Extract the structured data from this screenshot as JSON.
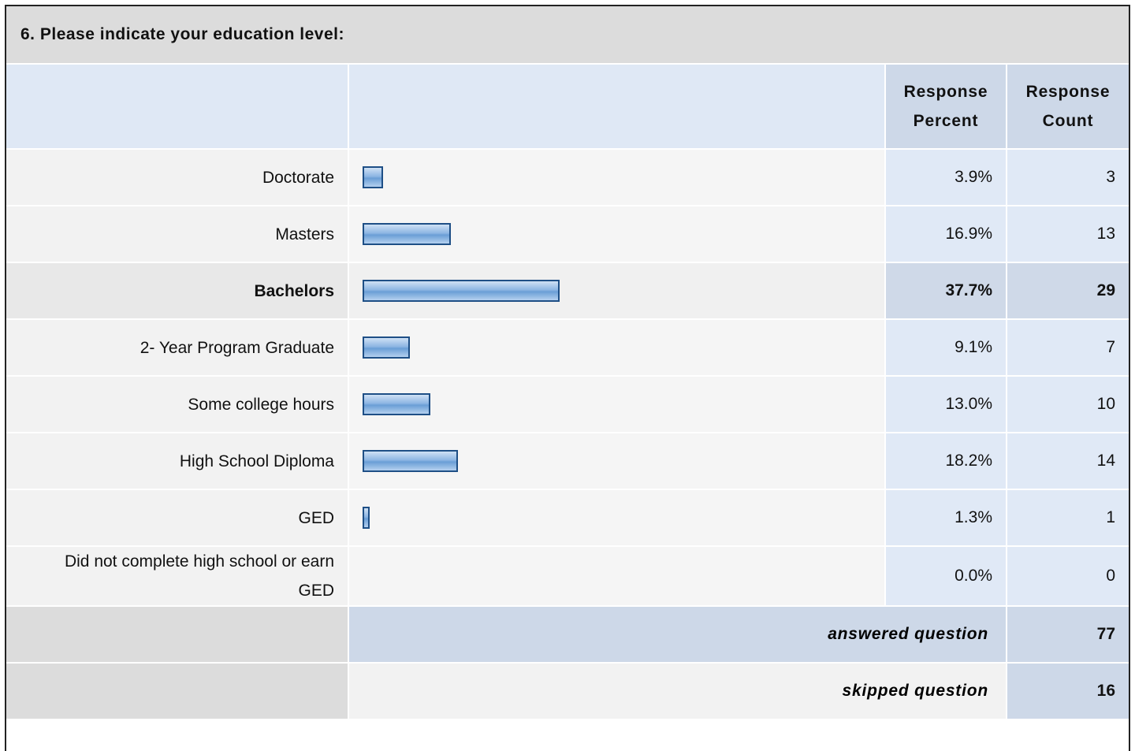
{
  "title": "6. Please indicate your education level:",
  "chart_data": {
    "type": "bar",
    "orientation": "horizontal",
    "column_headers": [
      "Response Percent",
      "Response Count"
    ],
    "categories": [
      "Doctorate",
      "Masters",
      "Bachelors",
      "2- Year Program Graduate",
      "Some college hours",
      "High School Diploma",
      "GED",
      "Did not complete high school or earn GED"
    ],
    "values": [
      3.9,
      16.9,
      37.7,
      9.1,
      13.0,
      18.2,
      1.3,
      0.0
    ],
    "value_labels": [
      "3.9%",
      "16.9%",
      "37.7%",
      "9.1%",
      "13.0%",
      "18.2%",
      "1.3%",
      "0.0%"
    ],
    "counts": [
      3,
      13,
      29,
      7,
      10,
      14,
      1,
      0
    ],
    "xlim": [
      0,
      100
    ],
    "color": "#8db6e3"
  },
  "footer": {
    "answered": {
      "label": "answered question",
      "value": 77
    },
    "skipped": {
      "label": "skipped question",
      "value": 16
    }
  }
}
